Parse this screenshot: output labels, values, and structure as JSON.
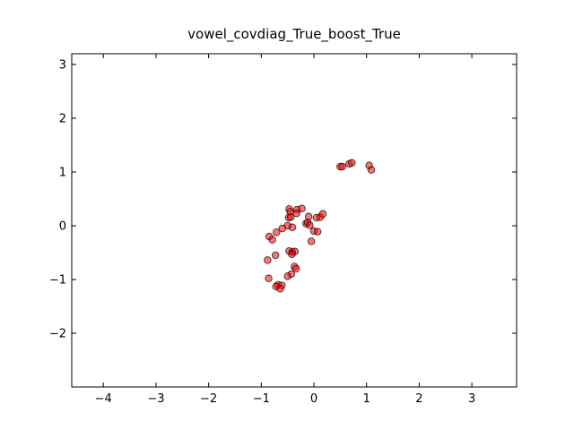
{
  "chart_data": {
    "type": "scatter",
    "title": "vowel_covdiag_True_boost_True",
    "xlabel": "",
    "ylabel": "",
    "xlim": [
      -4.6,
      3.85
    ],
    "ylim": [
      -3.0,
      3.2
    ],
    "xticks": [
      -4,
      -3,
      -2,
      -1,
      0,
      1,
      2,
      3
    ],
    "xtick_labels": [
      "−4",
      "−3",
      "−2",
      "−1",
      "0",
      "1",
      "2",
      "3"
    ],
    "yticks": [
      -2,
      -1,
      0,
      1,
      2,
      3
    ],
    "ytick_labels": [
      "−2",
      "−1",
      "0",
      "1",
      "2",
      "3"
    ],
    "grid": false,
    "marker_color": "#ff0000",
    "marker_edge_color": "#000000",
    "marker_alpha": 0.55,
    "points": [
      {
        "x": 0.5,
        "y": 1.1
      },
      {
        "x": 0.54,
        "y": 1.1
      },
      {
        "x": 0.67,
        "y": 1.15
      },
      {
        "x": 0.72,
        "y": 1.17
      },
      {
        "x": 1.05,
        "y": 1.12
      },
      {
        "x": 1.09,
        "y": 1.04
      },
      {
        "x": -0.47,
        "y": 0.31
      },
      {
        "x": -0.32,
        "y": 0.3
      },
      {
        "x": -0.23,
        "y": 0.32
      },
      {
        "x": -0.45,
        "y": 0.26
      },
      {
        "x": -0.33,
        "y": 0.23
      },
      {
        "x": -0.1,
        "y": 0.17
      },
      {
        "x": 0.05,
        "y": 0.15
      },
      {
        "x": 0.12,
        "y": 0.16
      },
      {
        "x": 0.17,
        "y": 0.22
      },
      {
        "x": -0.48,
        "y": 0.15
      },
      {
        "x": -0.44,
        "y": 0.16
      },
      {
        "x": -0.15,
        "y": 0.04
      },
      {
        "x": -0.12,
        "y": 0.06
      },
      {
        "x": -0.08,
        "y": 0.01
      },
      {
        "x": -0.5,
        "y": 0.0
      },
      {
        "x": -0.41,
        "y": -0.03
      },
      {
        "x": -0.6,
        "y": -0.05
      },
      {
        "x": -0.71,
        "y": -0.12
      },
      {
        "x": 0.0,
        "y": -0.1
      },
      {
        "x": 0.07,
        "y": -0.11
      },
      {
        "x": -0.85,
        "y": -0.2
      },
      {
        "x": -0.79,
        "y": -0.26
      },
      {
        "x": -0.05,
        "y": -0.29
      },
      {
        "x": -0.47,
        "y": -0.47
      },
      {
        "x": -0.41,
        "y": -0.49
      },
      {
        "x": -0.36,
        "y": -0.48
      },
      {
        "x": -0.42,
        "y": -0.53
      },
      {
        "x": -0.73,
        "y": -0.55
      },
      {
        "x": -0.88,
        "y": -0.64
      },
      {
        "x": -0.37,
        "y": -0.76
      },
      {
        "x": -0.34,
        "y": -0.8
      },
      {
        "x": -0.43,
        "y": -0.9
      },
      {
        "x": -0.5,
        "y": -0.94
      },
      {
        "x": -0.86,
        "y": -0.98
      },
      {
        "x": -0.68,
        "y": -1.1
      },
      {
        "x": -0.61,
        "y": -1.11
      },
      {
        "x": -0.72,
        "y": -1.13
      },
      {
        "x": -0.64,
        "y": -1.17
      }
    ]
  }
}
